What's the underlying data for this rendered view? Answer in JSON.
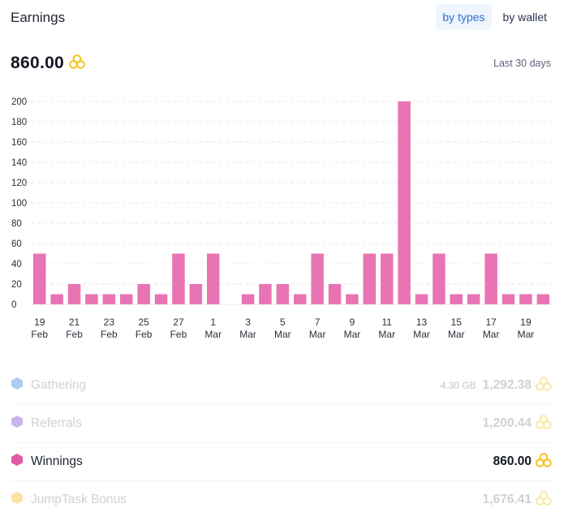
{
  "header": {
    "title": "Earnings"
  },
  "toggle": {
    "by_types": "by types",
    "by_wallet": "by wallet"
  },
  "summary": {
    "total": "860.00",
    "coin_icon": "coins-icon",
    "period": "Last 30 days"
  },
  "colors": {
    "bar": "#e874b4",
    "coin": "#f5c31c",
    "accent": "#2f6fd0"
  },
  "chart_data": {
    "type": "bar",
    "x": [
      "19 Feb",
      "20 Feb",
      "21 Feb",
      "22 Feb",
      "23 Feb",
      "24 Feb",
      "25 Feb",
      "26 Feb",
      "27 Feb",
      "28 Feb",
      "1 Mar",
      "2 Mar",
      "3 Mar",
      "4 Mar",
      "5 Mar",
      "6 Mar",
      "7 Mar",
      "8 Mar",
      "9 Mar",
      "10 Mar",
      "11 Mar",
      "12 Mar",
      "13 Mar",
      "14 Mar",
      "15 Mar",
      "16 Mar",
      "17 Mar",
      "18 Mar",
      "19 Mar",
      "20 Mar"
    ],
    "values": [
      50,
      10,
      20,
      10,
      10,
      10,
      20,
      10,
      50,
      20,
      50,
      0,
      10,
      20,
      20,
      10,
      50,
      20,
      10,
      50,
      50,
      200,
      10,
      50,
      10,
      10,
      50,
      10,
      10,
      10
    ],
    "tick_labels": [
      {
        "day": "19",
        "month": "Feb"
      },
      {
        "day": "21",
        "month": "Feb"
      },
      {
        "day": "23",
        "month": "Feb"
      },
      {
        "day": "25",
        "month": "Feb"
      },
      {
        "day": "27",
        "month": "Feb"
      },
      {
        "day": "1",
        "month": "Mar"
      },
      {
        "day": "3",
        "month": "Mar"
      },
      {
        "day": "5",
        "month": "Mar"
      },
      {
        "day": "7",
        "month": "Mar"
      },
      {
        "day": "9",
        "month": "Mar"
      },
      {
        "day": "11",
        "month": "Mar"
      },
      {
        "day": "13",
        "month": "Mar"
      },
      {
        "day": "15",
        "month": "Mar"
      },
      {
        "day": "17",
        "month": "Mar"
      },
      {
        "day": "19",
        "month": "Mar"
      }
    ],
    "yticks": [
      0,
      20,
      40,
      60,
      80,
      100,
      120,
      140,
      160,
      180,
      200
    ],
    "ylim": [
      0,
      200
    ],
    "grid": true,
    "color": "#e874b4"
  },
  "categories": [
    {
      "name": "Gathering",
      "sub": "4.30 GB",
      "value": "1,292.38",
      "color": "#a8cdf0",
      "state": "faded"
    },
    {
      "name": "Referrals",
      "sub": "",
      "value": "1,200.44",
      "color": "#c9b4ee",
      "state": "faded"
    },
    {
      "name": "Winnings",
      "sub": "",
      "value": "860.00",
      "color": "#e05aa6",
      "state": "active"
    },
    {
      "name": "JumpTask Bonus",
      "sub": "",
      "value": "1,676.41",
      "color": "#fbe1a4",
      "state": "faded"
    }
  ]
}
